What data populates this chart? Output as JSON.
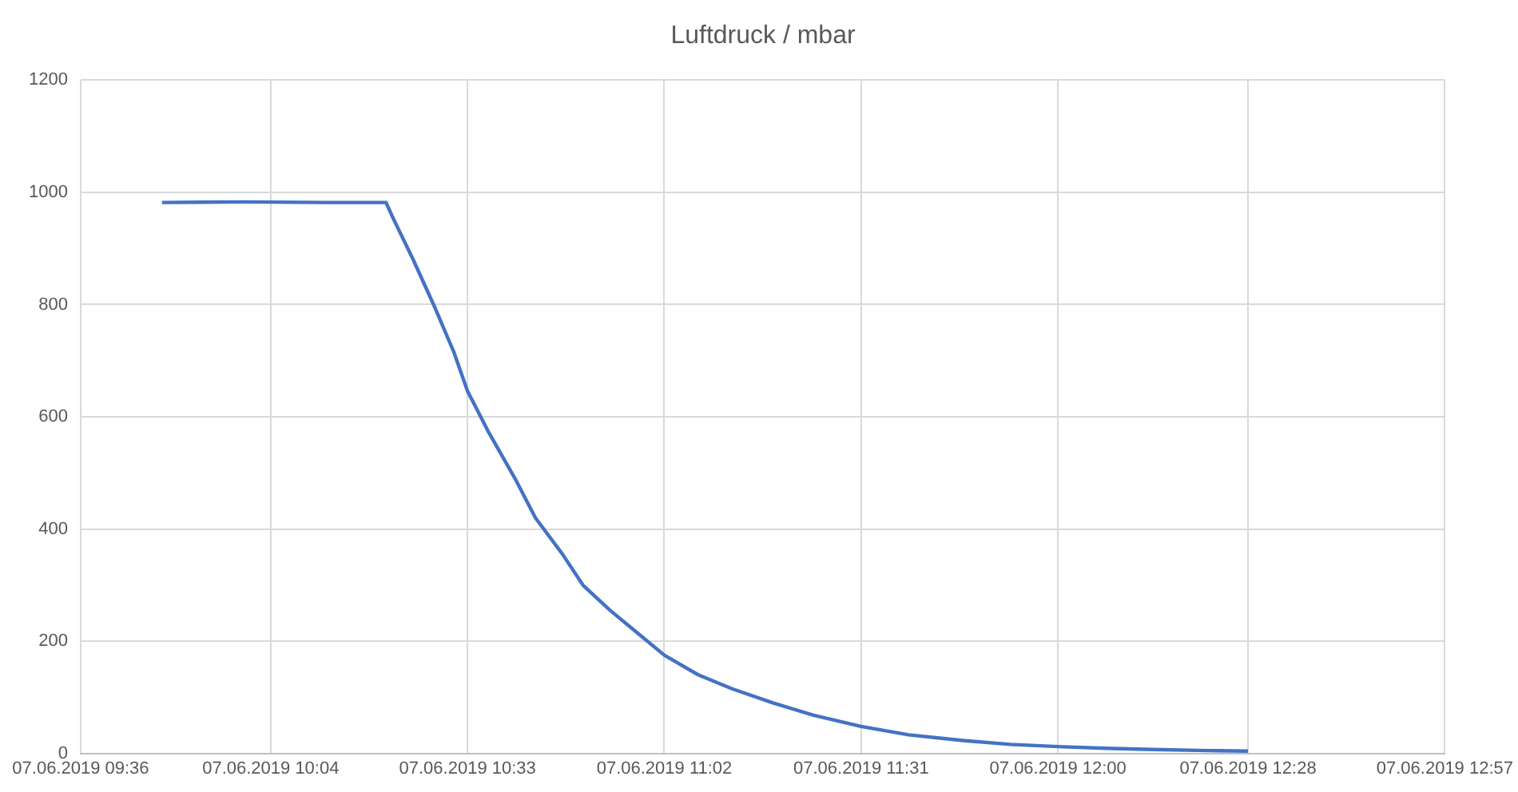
{
  "chart_data": {
    "type": "line",
    "title": "Luftdruck / mbar",
    "x": [
      "2019-06-07T09:48",
      "2019-06-07T10:00",
      "2019-06-07T10:12",
      "2019-06-07T10:21",
      "2019-06-07T10:22",
      "2019-06-07T10:23",
      "2019-06-07T10:25",
      "2019-06-07T10:28",
      "2019-06-07T10:31",
      "2019-06-07T10:33",
      "2019-06-07T10:36",
      "2019-06-07T10:40",
      "2019-06-07T10:43",
      "2019-06-07T10:47",
      "2019-06-07T10:50",
      "2019-06-07T10:54",
      "2019-06-07T10:58",
      "2019-06-07T11:02",
      "2019-06-07T11:07",
      "2019-06-07T11:12",
      "2019-06-07T11:18",
      "2019-06-07T11:24",
      "2019-06-07T11:31",
      "2019-06-07T11:38",
      "2019-06-07T11:46",
      "2019-06-07T11:53",
      "2019-06-07T12:00",
      "2019-06-07T12:07",
      "2019-06-07T12:14",
      "2019-06-07T12:22",
      "2019-06-07T12:28"
    ],
    "series": [
      {
        "color": "#4472c4",
        "values": [
          982,
          983,
          982,
          982,
          955,
          930,
          880,
          800,
          715,
          646,
          575,
          490,
          420,
          355,
          300,
          255,
          215,
          175,
          140,
          115,
          90,
          68,
          48,
          33,
          23,
          16,
          12,
          9,
          7,
          5,
          4
        ]
      }
    ],
    "xlim": [
      "2019-06-07T09:36",
      "2019-06-07T12:57"
    ],
    "xticks": [
      {
        "value": "2019-06-07T09:36",
        "label": "07.06.2019 09:36"
      },
      {
        "value": "2019-06-07T10:04",
        "label": "07.06.2019 10:04"
      },
      {
        "value": "2019-06-07T10:33",
        "label": "07.06.2019 10:33"
      },
      {
        "value": "2019-06-07T11:02",
        "label": "07.06.2019 11:02"
      },
      {
        "value": "2019-06-07T11:31",
        "label": "07.06.2019 11:31"
      },
      {
        "value": "2019-06-07T12:00",
        "label": "07.06.2019 12:00"
      },
      {
        "value": "2019-06-07T12:28",
        "label": "07.06.2019 12:28"
      },
      {
        "value": "2019-06-07T12:57",
        "label": "07.06.2019 12:57"
      }
    ],
    "ylim": [
      0,
      1200
    ],
    "yticks": [
      0,
      200,
      400,
      600,
      800,
      1000,
      1200
    ],
    "grid": true,
    "legend": false,
    "marker": "none",
    "line_style": "solid"
  }
}
